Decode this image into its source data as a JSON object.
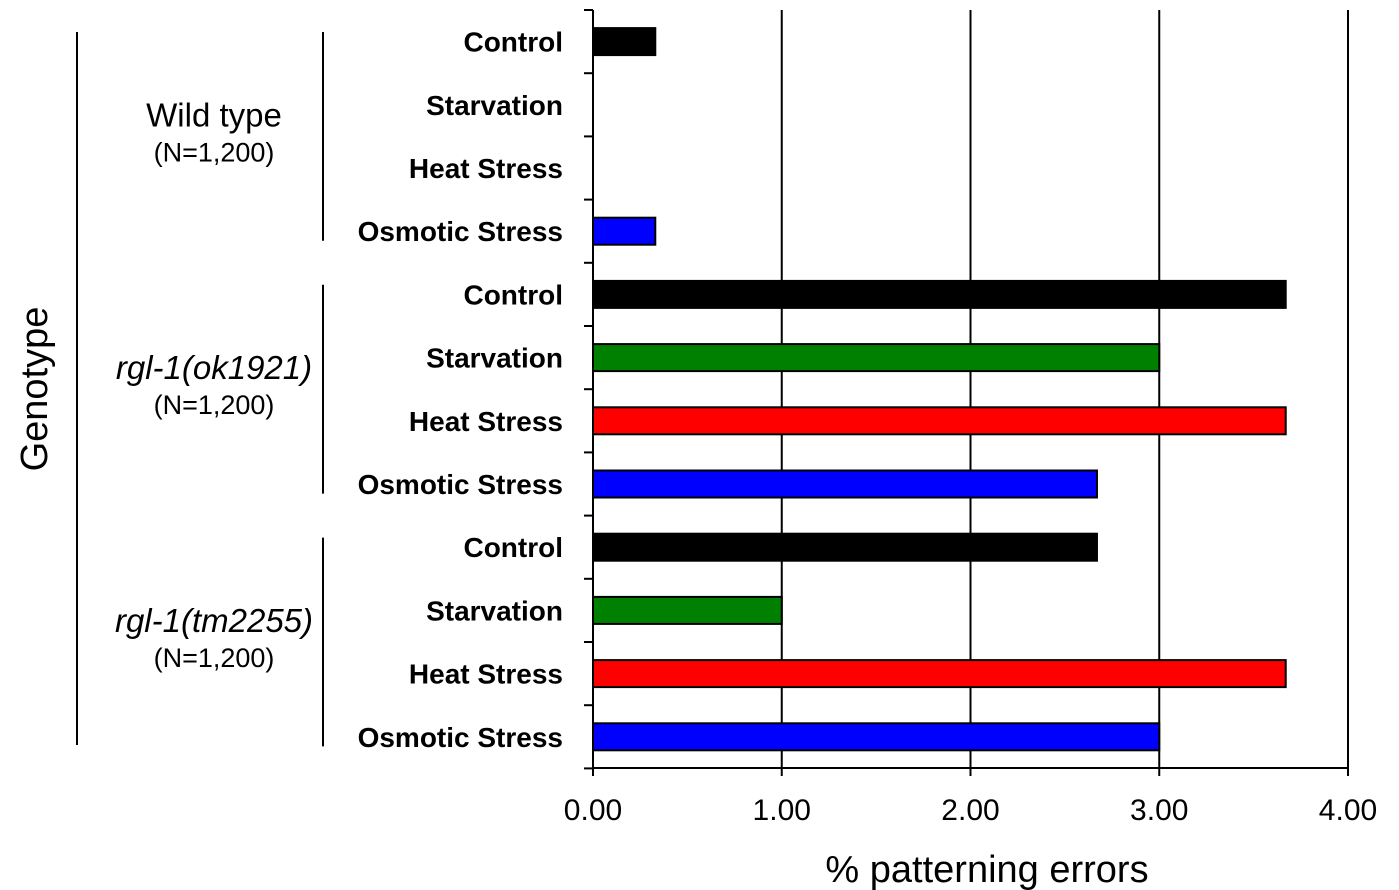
{
  "chart_data": {
    "type": "bar",
    "orientation": "horizontal",
    "xlabel": "% patterning errors",
    "ylabel": "Genotype",
    "xlim": [
      0,
      4
    ],
    "x_ticks": [
      "0.00",
      "1.00",
      "2.00",
      "3.00",
      "4.00"
    ],
    "grid": "vertical lines at major ticks",
    "colors": {
      "Control": "#000000",
      "Starvation": "#008000",
      "Heat Stress": "#ff0000",
      "Osmotic Stress": "#0000ff"
    },
    "groups": [
      {
        "genotype": "Wild type",
        "italic": false,
        "n_label": "(N=1,200)",
        "bars": [
          {
            "condition": "Control",
            "value": 0.33
          },
          {
            "condition": "Starvation",
            "value": 0.0
          },
          {
            "condition": "Heat Stress",
            "value": 0.0
          },
          {
            "condition": "Osmotic Stress",
            "value": 0.33
          }
        ]
      },
      {
        "genotype": "rgl-1(ok1921)",
        "italic": true,
        "n_label": "(N=1,200)",
        "bars": [
          {
            "condition": "Control",
            "value": 3.67
          },
          {
            "condition": "Starvation",
            "value": 3.0
          },
          {
            "condition": "Heat Stress",
            "value": 3.67
          },
          {
            "condition": "Osmotic Stress",
            "value": 2.67
          }
        ]
      },
      {
        "genotype": "rgl-1(tm2255)",
        "italic": true,
        "n_label": "(N=1,200)",
        "bars": [
          {
            "condition": "Control",
            "value": 2.67
          },
          {
            "condition": "Starvation",
            "value": 1.0
          },
          {
            "condition": "Heat Stress",
            "value": 3.67
          },
          {
            "condition": "Osmotic Stress",
            "value": 3.0
          }
        ]
      }
    ]
  }
}
